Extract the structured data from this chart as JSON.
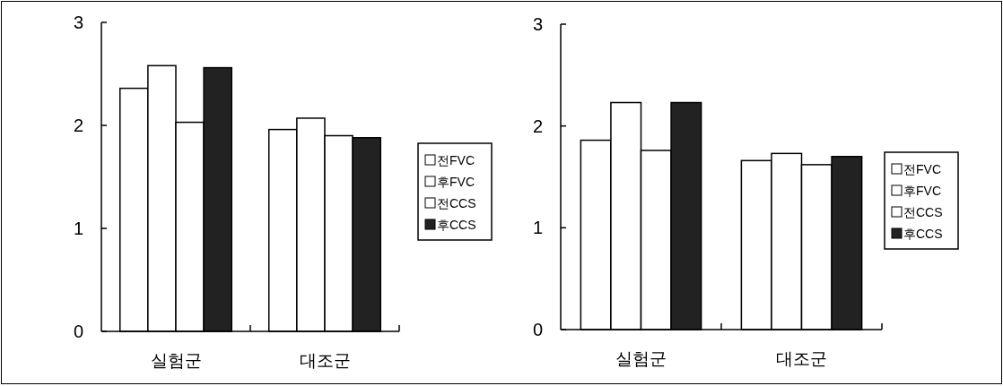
{
  "chart_data": [
    {
      "type": "bar",
      "categories": [
        "실험군",
        "대조군"
      ],
      "ylim": [
        0,
        3
      ],
      "yticks": [
        0,
        1,
        2,
        3
      ],
      "legend": "right",
      "series": [
        {
          "name": "전FVC",
          "color": "#ffffff",
          "values": [
            2.36,
            1.96
          ]
        },
        {
          "name": "후FVC",
          "color": "#ffffff",
          "values": [
            2.58,
            2.07
          ]
        },
        {
          "name": "전CCS",
          "color": "#ffffff",
          "values": [
            2.03,
            1.9
          ]
        },
        {
          "name": "후CCS",
          "color": "#222222",
          "values": [
            2.56,
            1.88
          ]
        }
      ]
    },
    {
      "type": "bar",
      "categories": [
        "실험군",
        "대조군"
      ],
      "ylim": [
        0,
        3
      ],
      "yticks": [
        0,
        1,
        2,
        3
      ],
      "legend": "right",
      "series": [
        {
          "name": "전FVC",
          "color": "#ffffff",
          "values": [
            1.86,
            1.66
          ]
        },
        {
          "name": "후FVC",
          "color": "#ffffff",
          "values": [
            2.23,
            1.73
          ]
        },
        {
          "name": "전CCS",
          "color": "#ffffff",
          "values": [
            1.76,
            1.62
          ]
        },
        {
          "name": "후CCS",
          "color": "#222222",
          "values": [
            2.23,
            1.7
          ]
        }
      ]
    }
  ]
}
